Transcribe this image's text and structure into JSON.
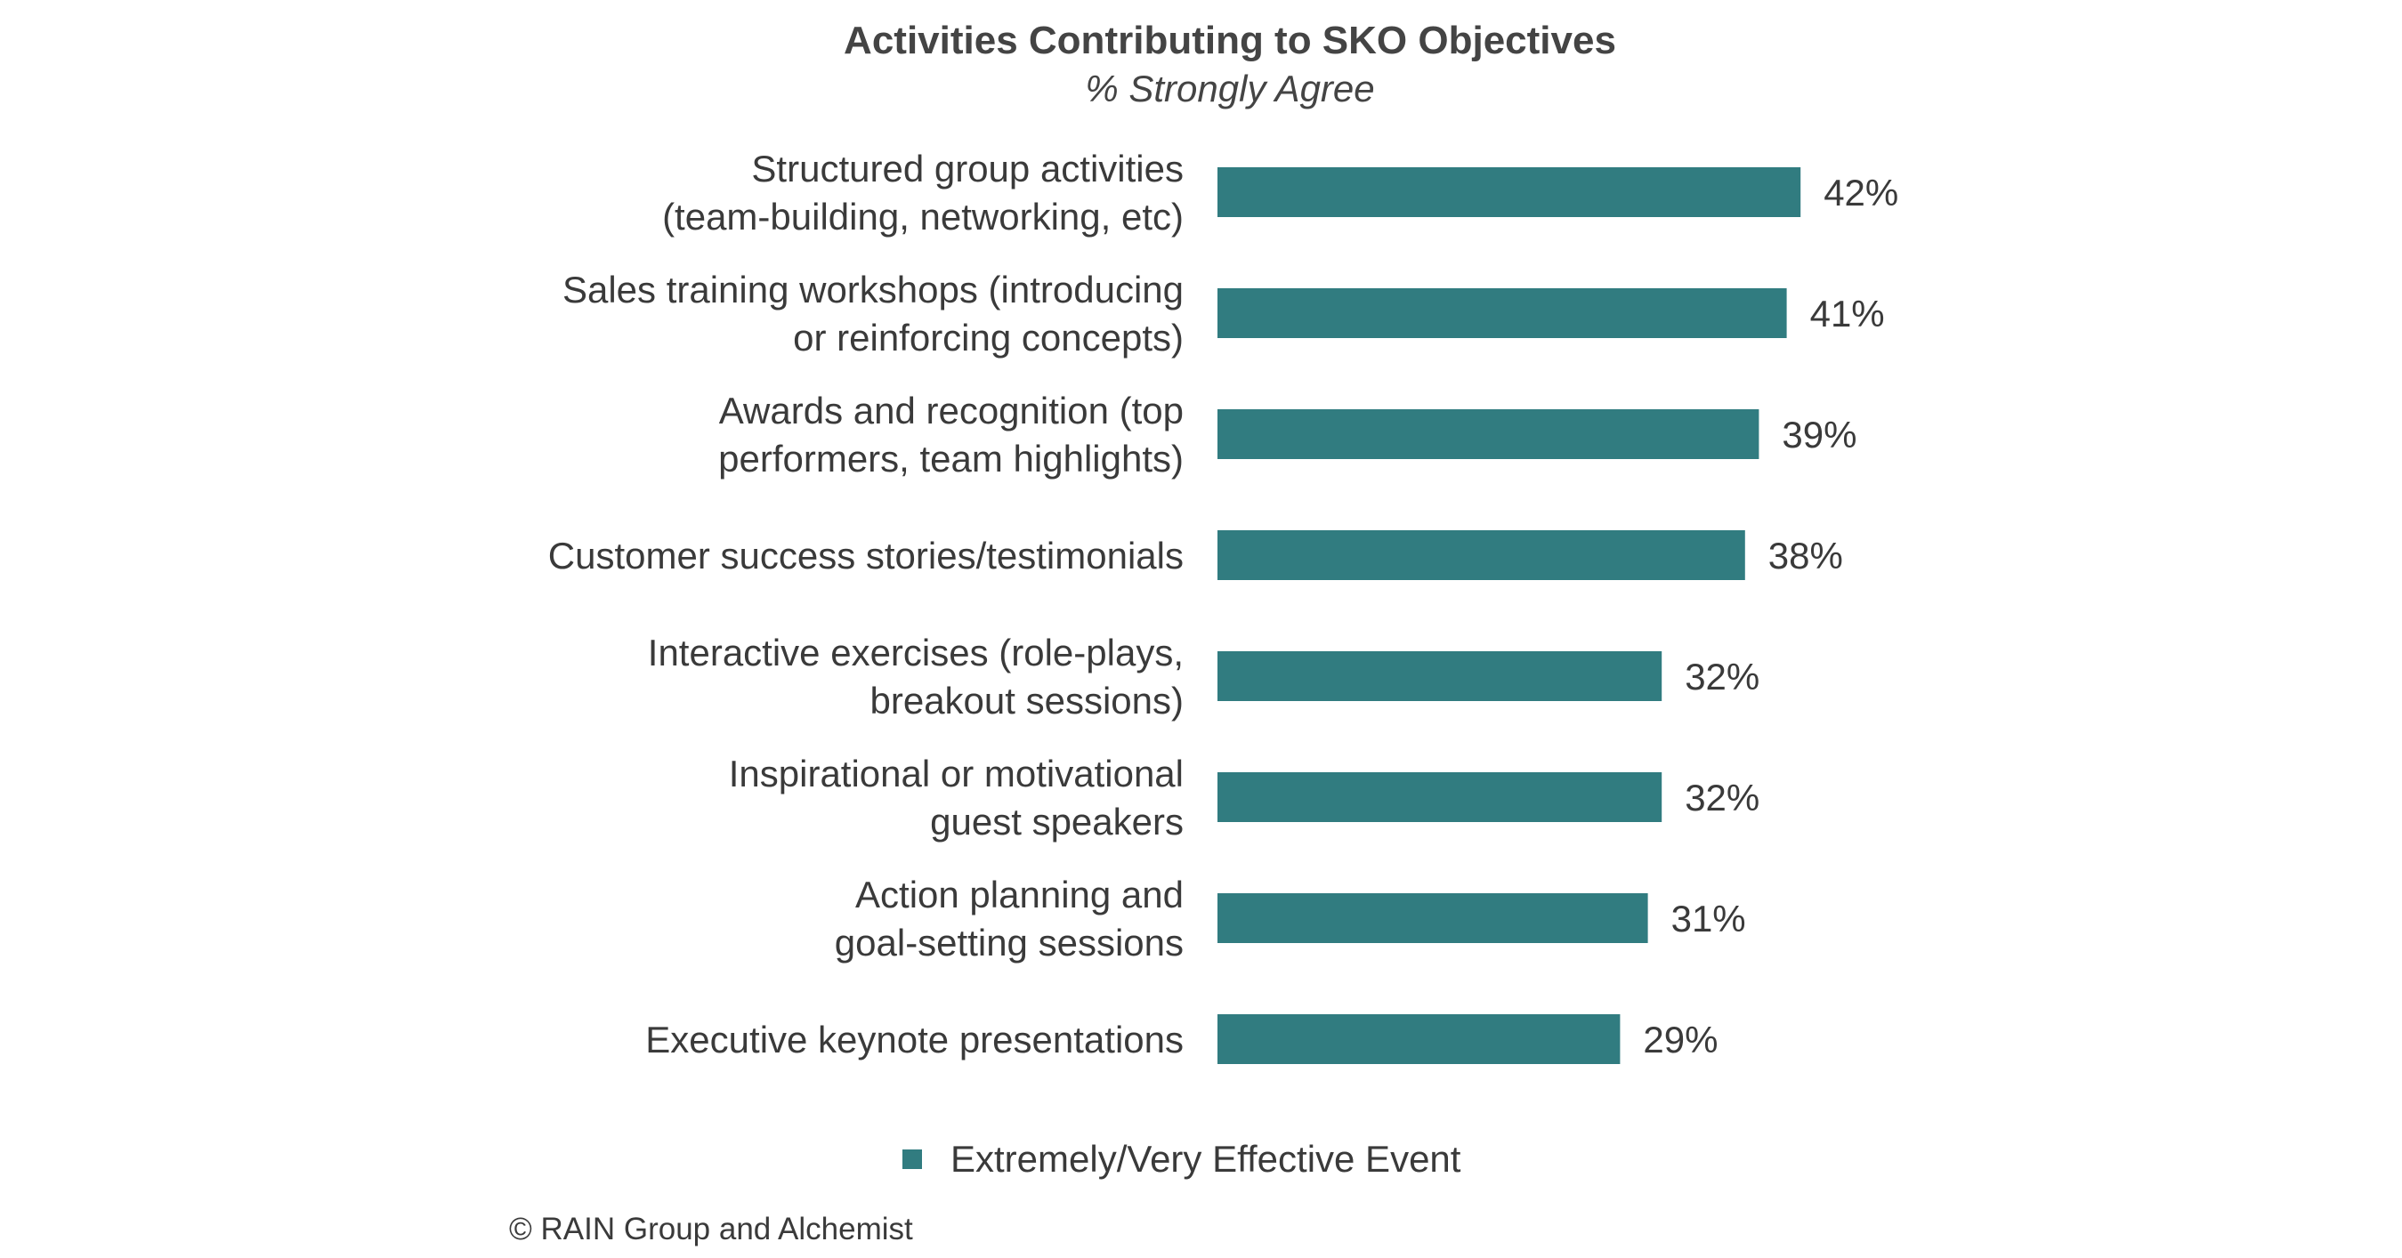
{
  "chart_data": {
    "type": "bar",
    "orientation": "horizontal",
    "title": "Activities Contributing to SKO Objectives",
    "subtitle": "% Strongly Agree",
    "categories": [
      [
        "Structured group activities",
        "(team-building, networking, etc)"
      ],
      [
        "Sales training workshops (introducing",
        "or reinforcing concepts)"
      ],
      [
        "Awards and recognition (top",
        "performers, team highlights)"
      ],
      [
        "Customer success stories/testimonials"
      ],
      [
        "Interactive exercises (role-plays,",
        "breakout sessions)"
      ],
      [
        "Inspirational or motivational",
        "guest speakers"
      ],
      [
        "Action planning and",
        "goal-setting sessions"
      ],
      [
        "Executive keynote presentations"
      ]
    ],
    "series": [
      {
        "name": "Extremely/Very Effective Event",
        "values": [
          42,
          41,
          39,
          38,
          32,
          32,
          31,
          29
        ],
        "color": "#317c80"
      }
    ],
    "value_labels": [
      "42%",
      "41%",
      "39%",
      "38%",
      "32%",
      "32%",
      "31%",
      "29%"
    ],
    "xlim": [
      0,
      100
    ],
    "grid": false,
    "legend_position": "bottom"
  },
  "footer": {
    "copyright": "© RAIN Group and Alchemist"
  }
}
